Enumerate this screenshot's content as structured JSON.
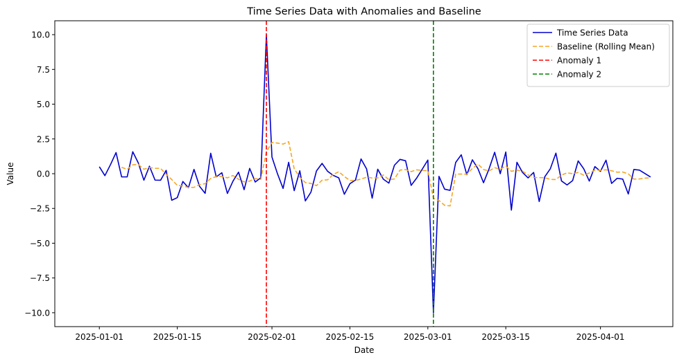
{
  "chart_data": {
    "type": "line",
    "title": "Time Series Data with Anomalies and Baseline",
    "xlabel": "Date",
    "ylabel": "Value",
    "start_date": "2025-01-01",
    "xlim": [
      "2024-12-24",
      "2025-04-14"
    ],
    "ylim": [
      -11.0,
      11.0
    ],
    "x_ticks": [
      "2025-01-01",
      "2025-01-15",
      "2025-02-01",
      "2025-02-15",
      "2025-03-01",
      "2025-03-15",
      "2025-04-01"
    ],
    "y_ticks": [
      -10.0,
      -7.5,
      -5.0,
      -2.5,
      0.0,
      2.5,
      5.0,
      7.5,
      10.0
    ],
    "y_tick_labels": [
      "−10.0",
      "−7.5",
      "−5.0",
      "−2.5",
      "0.0",
      "2.5",
      "5.0",
      "7.5",
      "10.0"
    ],
    "grid": false,
    "legend_position": "top-right",
    "series": [
      {
        "name": "Time Series Data",
        "style": "solid",
        "color": "#0000cd",
        "values": [
          0.5,
          -0.14,
          0.65,
          1.52,
          -0.23,
          -0.23,
          1.58,
          0.77,
          -0.47,
          0.54,
          -0.46,
          -0.47,
          0.24,
          -1.91,
          -1.72,
          -0.56,
          -1.01,
          0.31,
          -0.91,
          -1.41,
          1.47,
          -0.23,
          0.07,
          -1.42,
          -0.54,
          0.11,
          -1.15,
          0.38,
          -0.6,
          -0.29,
          10.0,
          1.2,
          -0.01,
          -1.06,
          0.82,
          -1.22,
          0.21,
          -1.96,
          -1.33,
          0.2,
          0.74,
          0.17,
          -0.12,
          -0.3,
          -1.48,
          -0.72,
          -0.46,
          1.06,
          0.34,
          -1.76,
          0.32,
          -0.39,
          -0.68,
          0.61,
          1.03,
          0.93,
          -0.84,
          -0.31,
          0.33,
          0.98,
          -10.0,
          -0.19,
          -1.11,
          -1.2,
          0.81,
          1.36,
          -0.07,
          1.0,
          0.36,
          -0.65,
          0.36,
          1.54,
          0.0,
          1.56,
          -2.62,
          0.82,
          0.09,
          -0.3,
          0.09,
          -2.0,
          -0.22,
          0.36,
          1.48,
          -0.52,
          -0.81,
          -0.5,
          0.92,
          0.35,
          -0.53,
          0.51,
          0.17,
          0.97,
          -0.7,
          -0.33,
          -0.39,
          -1.46,
          0.3,
          0.26,
          0.01,
          -0.24
        ]
      },
      {
        "name": "Baseline (Rolling Mean)",
        "style": "dashed",
        "color": "#f5a623",
        "values": [
          null,
          null,
          null,
          null,
          0.46,
          0.31,
          0.64,
          0.67,
          0.32,
          0.44,
          0.39,
          0.38,
          -0.04,
          -0.42,
          -0.84,
          -0.88,
          -0.99,
          -0.98,
          -0.78,
          -0.72,
          -0.34,
          -0.21,
          -0.2,
          -0.3,
          -0.13,
          -0.4,
          -0.59,
          -0.53,
          -0.36,
          -0.41,
          1.57,
          2.25,
          2.2,
          2.13,
          2.3,
          0.35,
          -0.25,
          -0.64,
          -0.7,
          -0.86,
          -0.47,
          -0.44,
          -0.06,
          0.14,
          -0.2,
          -0.49,
          -0.48,
          -0.39,
          -0.25,
          -0.31,
          -0.31,
          -0.09,
          -0.43,
          -0.38,
          0.26,
          0.3,
          0.15,
          0.28,
          0.23,
          0.22,
          -1.77,
          -1.93,
          -2.27,
          -2.32,
          -0.03,
          -0.03,
          -0.04,
          0.38,
          0.69,
          0.3,
          0.2,
          0.43,
          0.32,
          0.55,
          0.17,
          0.26,
          0.18,
          -0.09,
          -0.28,
          -0.28,
          -0.29,
          -0.41,
          -0.42,
          -0.1,
          0.06,
          0.0,
          0.09,
          -0.11,
          0.05,
          0.26,
          0.24,
          0.28,
          0.21,
          0.11,
          0.12,
          -0.01,
          -0.39,
          -0.38,
          -0.32,
          -0.29
        ]
      }
    ],
    "vlines": [
      {
        "name": "Anomaly 1",
        "x": "2025-01-31",
        "color": "#ff0000",
        "style": "dashed"
      },
      {
        "name": "Anomaly 2",
        "x": "2025-03-02",
        "color": "#008000",
        "style": "dashed"
      }
    ]
  }
}
